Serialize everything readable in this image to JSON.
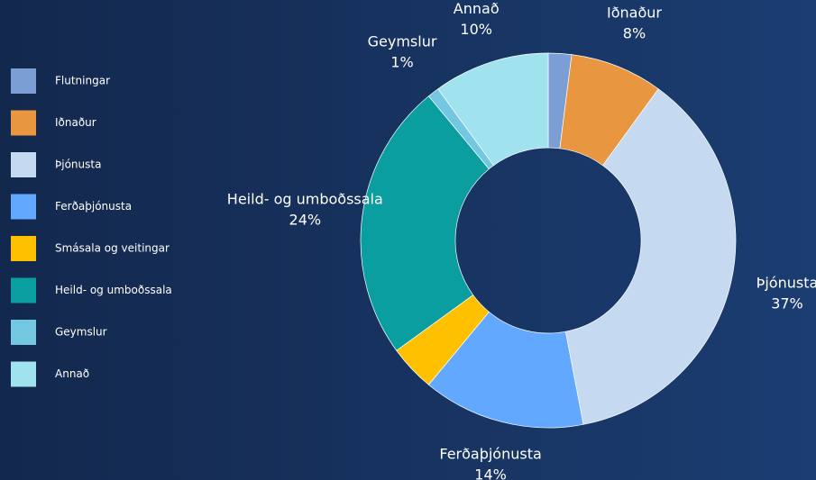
{
  "chart_data": {
    "type": "donut",
    "categories": [
      "Flutningar",
      "Iðnaður",
      "Þjónusta",
      "Ferðaþjónusta",
      "Smásala og veitingar",
      "Heild- og umboðssala",
      "Geymslur",
      "Annað"
    ],
    "values": [
      2,
      8,
      37,
      14,
      4,
      24,
      1,
      10
    ],
    "value_labels": [
      null,
      "8%",
      "37%",
      "14%",
      null,
      "24%",
      "1%",
      "10%"
    ],
    "colors": [
      "#7b9fd4",
      "#e8963f",
      "#c5d9f0",
      "#62a8ff",
      "#ffc000",
      "#0b9ea0",
      "#74c7e0",
      "#a0e2ee"
    ],
    "legend": "left"
  }
}
